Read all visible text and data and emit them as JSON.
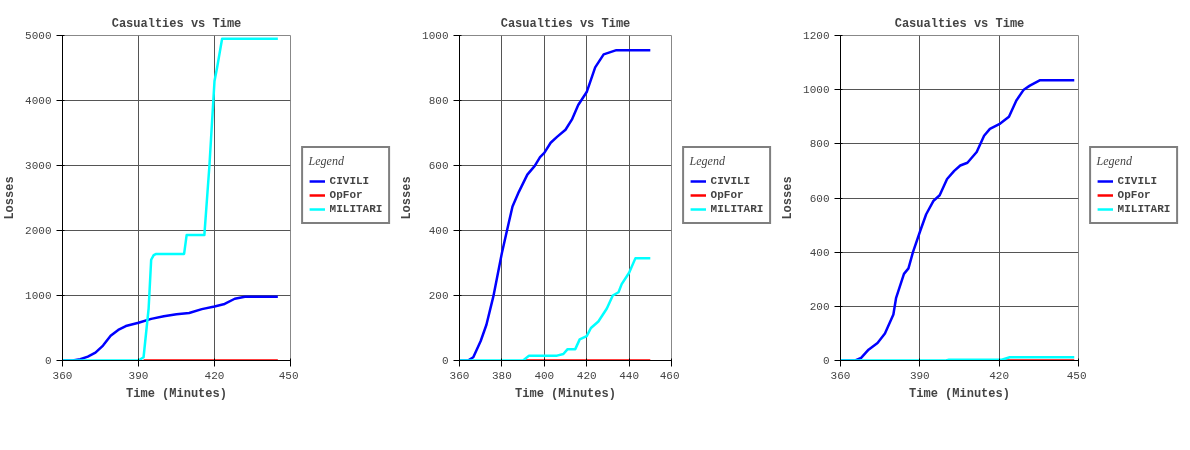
{
  "chart_data": [
    {
      "type": "line",
      "title": "Casualties vs Time",
      "xlabel": "Time (Minutes)",
      "ylabel": "Losses",
      "legend_title": "Legend",
      "legend": "right",
      "grid": true,
      "xlim": [
        360,
        450
      ],
      "xticks": [
        360,
        390,
        420,
        450
      ],
      "ylim": [
        0,
        5000
      ],
      "yticks": [
        0,
        1000,
        2000,
        3000,
        4000,
        5000
      ],
      "series": [
        {
          "name": "CIVILI",
          "color": "#0000ff",
          "x": [
            360,
            364,
            367,
            370,
            373,
            376,
            379,
            382,
            385,
            390,
            395,
            400,
            405,
            410,
            415,
            420,
            424,
            428,
            432,
            445
          ],
          "values": [
            0,
            0,
            20,
            60,
            120,
            230,
            380,
            470,
            530,
            580,
            640,
            680,
            710,
            730,
            790,
            830,
            870,
            950,
            980,
            980
          ]
        },
        {
          "name": "OpFor",
          "color": "#ff0000",
          "x": [
            392,
            445
          ],
          "values": [
            0,
            0
          ]
        },
        {
          "name": "MILITARI",
          "color": "#00ffff",
          "x": [
            360,
            390,
            392,
            394,
            395,
            396,
            397,
            408,
            409,
            416,
            418,
            420,
            421,
            423,
            445
          ],
          "values": [
            0,
            0,
            50,
            800,
            1550,
            1620,
            1640,
            1640,
            1930,
            1930,
            3000,
            4300,
            4500,
            4950,
            4950
          ]
        }
      ]
    },
    {
      "type": "line",
      "title": "Casualties vs Time",
      "xlabel": "Time (Minutes)",
      "ylabel": "Losses",
      "legend_title": "Legend",
      "legend": "right",
      "grid": true,
      "xlim": [
        360,
        460
      ],
      "xticks": [
        360,
        380,
        400,
        420,
        440,
        460
      ],
      "ylim": [
        0,
        1000
      ],
      "yticks": [
        0,
        200,
        400,
        600,
        800,
        1000
      ],
      "series": [
        {
          "name": "CIVILI",
          "color": "#0000ff",
          "x": [
            360,
            364,
            366.5,
            370,
            372.7,
            376,
            380,
            382.4,
            385,
            388,
            392,
            395.5,
            398,
            400,
            403,
            406,
            410,
            413,
            416,
            420,
            424,
            428,
            434,
            450
          ],
          "values": [
            0,
            0,
            10,
            60,
            110,
            198,
            331,
            400,
            474,
            519,
            572,
            599,
            626,
            639,
            670,
            688,
            710,
            741,
            786,
            826,
            902,
            942,
            955,
            955
          ]
        },
        {
          "name": "OpFor",
          "color": "#ff0000",
          "x": [
            390,
            450
          ],
          "values": [
            0,
            0
          ]
        },
        {
          "name": "MILITARI",
          "color": "#00ffff",
          "x": [
            360,
            390,
            392.8,
            406,
            409,
            411,
            414.6,
            416.7,
            420,
            422,
            425.5,
            429.5,
            432.3,
            435,
            436.5,
            440,
            443,
            450
          ],
          "values": [
            0,
            0,
            15,
            15,
            20,
            35,
            35,
            65,
            75,
            100,
            120,
            160,
            200,
            210,
            235,
            270,
            315,
            315
          ]
        }
      ]
    },
    {
      "type": "line",
      "title": "Casualties vs Time",
      "xlabel": "Time (Minutes)",
      "ylabel": "Losses",
      "legend_title": "Legend",
      "legend": "right",
      "grid": true,
      "xlim": [
        360,
        450
      ],
      "xticks": [
        360,
        390,
        420,
        450
      ],
      "ylim": [
        0,
        1200
      ],
      "yticks": [
        0,
        200,
        400,
        600,
        800,
        1000,
        1200
      ],
      "series": [
        {
          "name": "CIVILI",
          "color": "#0000ff",
          "x": [
            360,
            365.6,
            367.8,
            370.6,
            374,
            376.8,
            380,
            381,
            384,
            385.7,
            387.4,
            390.2,
            392.4,
            395.2,
            397.5,
            400.3,
            403,
            405.3,
            408,
            411.5,
            414.3,
            416.5,
            420.4,
            423.7,
            426.5,
            429.3,
            431.6,
            435.5,
            448.4
          ],
          "values": [
            0,
            0,
            10,
            40,
            65,
            100,
            170,
            230,
            320,
            340,
            400,
            480,
            540,
            590,
            610,
            670,
            700,
            720,
            730,
            770,
            830,
            855,
            875,
            900,
            960,
            1000,
            1015,
            1035,
            1035
          ]
        },
        {
          "name": "OpFor",
          "color": "#ff0000",
          "x": [
            400,
            448.4
          ],
          "values": [
            0,
            0
          ]
        },
        {
          "name": "MILITARI",
          "color": "#00ffff",
          "x": [
            360,
            400,
            401,
            421,
            424,
            448.4
          ],
          "values": [
            0,
            0,
            3,
            3,
            12,
            12
          ]
        }
      ]
    }
  ]
}
